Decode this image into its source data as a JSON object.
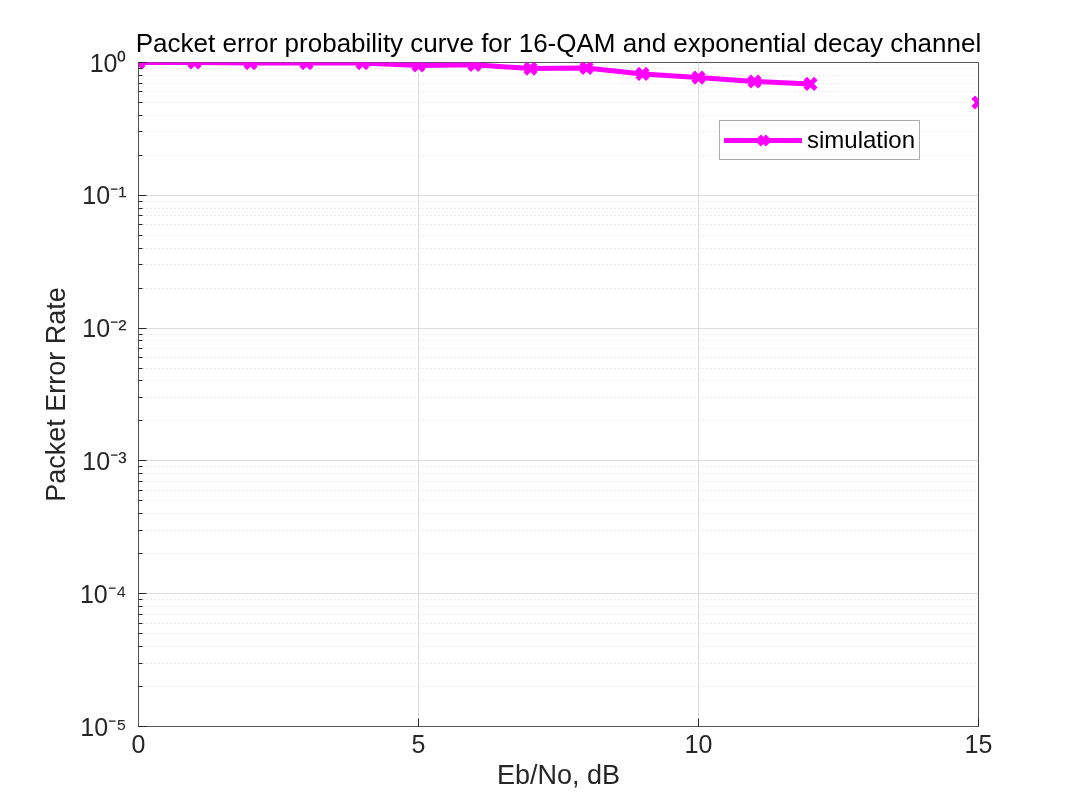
{
  "chart_data": {
    "type": "line",
    "title": "Packet error probability curve for 16-QAM and exponential decay channel",
    "xlabel": "Eb/No, dB",
    "ylabel": "Packet Error Rate",
    "x": [
      0,
      1,
      2,
      3,
      4,
      5,
      6,
      7,
      8,
      9,
      10,
      11,
      12,
      13,
      14,
      15
    ],
    "series": [
      {
        "name": "simulation",
        "color": "#ff00ff",
        "values": [
          1.0,
          1.0,
          0.99,
          0.99,
          0.99,
          0.95,
          0.96,
          0.9,
          0.91,
          0.82,
          0.77,
          0.72,
          0.69,
          null,
          null,
          0.5
        ]
      }
    ],
    "xlim": [
      0,
      15
    ],
    "xticks": [
      0,
      5,
      10,
      15
    ],
    "ylim": [
      1e-05,
      1
    ],
    "yticks": [
      {
        "value": 1e-05,
        "label": "10⁻⁵"
      },
      {
        "value": 0.0001,
        "label": "10⁻⁴"
      },
      {
        "value": 0.001,
        "label": "10⁻³"
      },
      {
        "value": 0.01,
        "label": "10⁻²"
      },
      {
        "value": 0.1,
        "label": "10⁻¹"
      },
      {
        "value": 1,
        "label": "10⁰"
      }
    ],
    "log": "y",
    "grid": true,
    "legend": "top right",
    "marker": "cross",
    "line_style": "solid"
  }
}
